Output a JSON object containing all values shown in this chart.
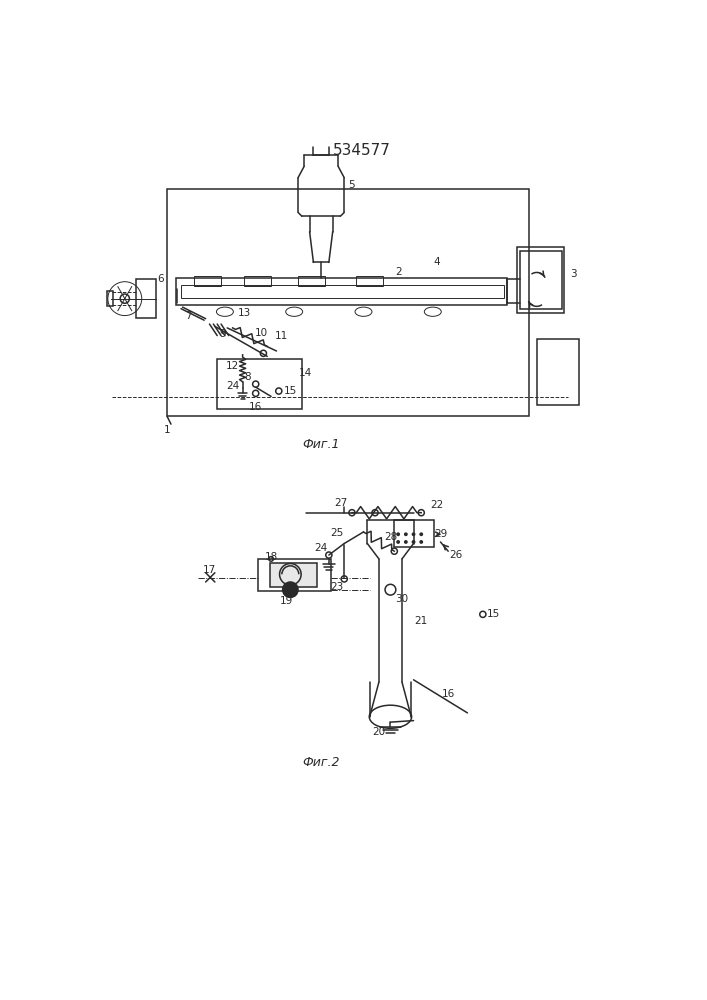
{
  "title": "534577",
  "fig1_caption": "Фиг.1",
  "fig2_caption": "Фиг.2",
  "bg_color": "#ffffff",
  "line_color": "#2a2a2a",
  "lw": 1.1,
  "thin_lw": 0.7,
  "fs_label": 7.5,
  "fs_title": 11,
  "fs_caption": 9
}
